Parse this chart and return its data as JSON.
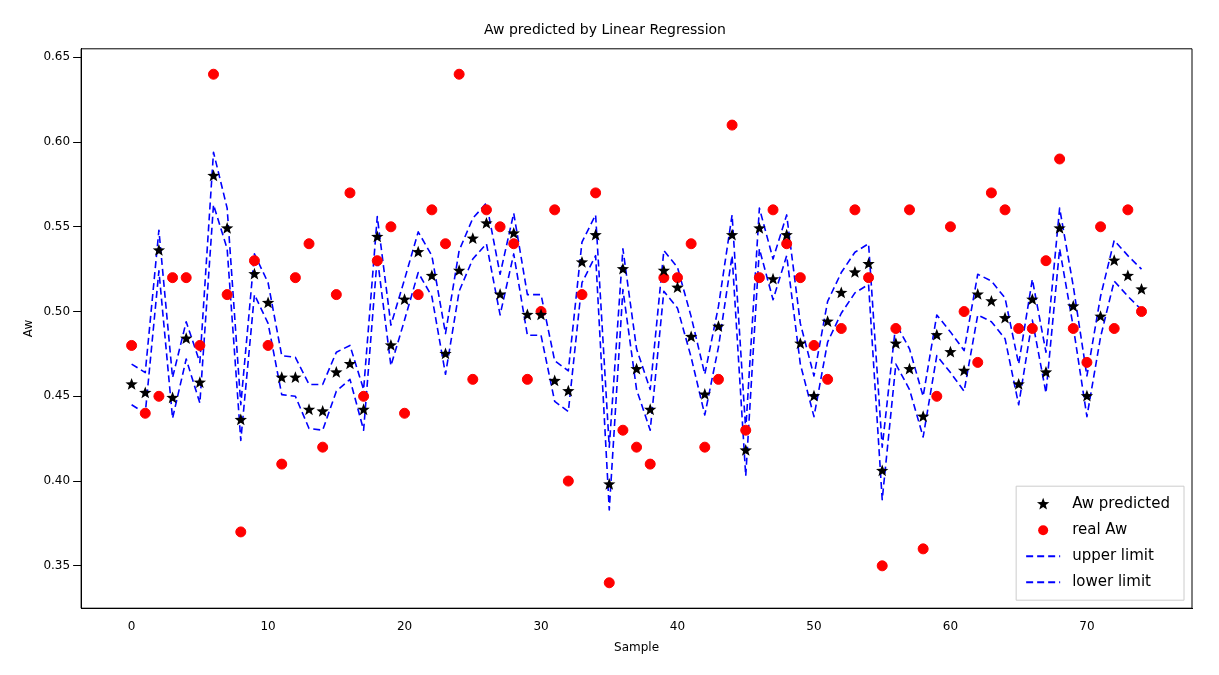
{
  "chart_data": {
    "type": "scatter",
    "title": "Aw predicted by Linear Regression",
    "xlabel": "Sample",
    "ylabel": "Aw",
    "x": [
      0,
      1,
      2,
      3,
      4,
      5,
      6,
      7,
      8,
      9,
      10,
      11,
      12,
      13,
      14,
      15,
      16,
      17,
      18,
      19,
      20,
      21,
      22,
      23,
      24,
      25,
      26,
      27,
      28,
      29,
      30,
      31,
      32,
      33,
      34,
      35,
      36,
      37,
      38,
      39,
      40,
      41,
      42,
      43,
      44,
      45,
      46,
      47,
      48,
      49,
      50,
      51,
      52,
      53,
      54,
      55,
      56,
      57,
      58,
      59,
      60,
      61,
      62,
      63,
      64,
      65,
      66,
      67,
      68,
      69,
      70,
      71,
      72,
      73,
      74
    ],
    "xlim": [
      -3.7,
      77.7
    ],
    "xticks": [
      0,
      10,
      20,
      30,
      40,
      50,
      60,
      70
    ],
    "ylim": [
      0.325,
      0.655
    ],
    "yticks": [
      {
        "value": 0.35,
        "label": "0.35"
      },
      {
        "value": 0.4,
        "label": "0.40"
      },
      {
        "value": 0.45,
        "label": "0.45"
      },
      {
        "value": 0.5,
        "label": "0.50"
      },
      {
        "value": 0.55,
        "label": "0.55"
      },
      {
        "value": 0.6,
        "label": "0.60"
      },
      {
        "value": 0.65,
        "label": "0.65"
      }
    ],
    "legend": "bottom right",
    "grid": false,
    "series": [
      {
        "name": "Aw predicted",
        "type": "scatter",
        "marker": "star",
        "color": "#000000",
        "values": [
          0.457,
          0.452,
          0.536,
          0.449,
          0.484,
          0.458,
          0.58,
          0.549,
          0.436,
          0.522,
          0.505,
          0.461,
          0.461,
          0.442,
          0.441,
          0.464,
          0.469,
          0.442,
          0.544,
          0.48,
          0.507,
          0.535,
          0.521,
          0.475,
          0.524,
          0.543,
          0.552,
          0.51,
          0.546,
          0.498,
          0.498,
          0.459,
          0.453,
          0.529,
          0.545,
          0.398,
          0.525,
          0.466,
          0.442,
          0.524,
          0.514,
          0.485,
          0.451,
          0.491,
          0.545,
          0.418,
          0.549,
          0.519,
          0.545,
          0.481,
          0.45,
          0.494,
          0.511,
          0.523,
          0.528,
          0.406,
          0.481,
          0.466,
          0.438,
          0.486,
          0.476,
          0.465,
          0.51,
          0.506,
          0.496,
          0.457,
          0.507,
          0.464,
          0.549,
          0.503,
          0.45,
          0.497,
          0.53,
          0.521,
          0.513
        ]
      },
      {
        "name": "real Aw",
        "type": "scatter",
        "marker": "circle",
        "color": "#ff0000",
        "values": [
          0.48,
          0.44,
          0.45,
          0.52,
          0.52,
          0.48,
          0.64,
          0.51,
          0.37,
          0.53,
          0.48,
          0.41,
          0.52,
          0.54,
          0.42,
          0.51,
          0.57,
          0.45,
          0.53,
          0.55,
          0.44,
          0.51,
          0.56,
          0.54,
          0.64,
          0.46,
          0.56,
          0.55,
          0.54,
          0.46,
          0.5,
          0.56,
          0.4,
          0.51,
          0.57,
          0.34,
          0.43,
          0.42,
          0.41,
          0.52,
          0.52,
          0.54,
          0.42,
          0.46,
          0.61,
          0.43,
          0.52,
          0.56,
          0.54,
          0.52,
          0.48,
          0.46,
          0.49,
          0.56,
          0.52,
          0.35,
          0.49,
          0.56,
          0.36,
          0.45,
          0.55,
          0.5,
          0.47,
          0.57,
          0.56,
          0.49,
          0.49,
          0.53,
          0.59,
          0.49,
          0.47,
          0.55,
          0.49,
          0.56,
          0.5
        ]
      },
      {
        "name": "upper limit",
        "type": "line",
        "marker": "none",
        "line_style": "dashed",
        "color": "#0000ff",
        "values": [
          0.469,
          0.464,
          0.548,
          0.461,
          0.494,
          0.47,
          0.594,
          0.561,
          0.445,
          0.534,
          0.517,
          0.474,
          0.473,
          0.457,
          0.457,
          0.476,
          0.48,
          0.454,
          0.556,
          0.492,
          0.519,
          0.547,
          0.533,
          0.487,
          0.536,
          0.555,
          0.564,
          0.522,
          0.558,
          0.51,
          0.51,
          0.471,
          0.465,
          0.541,
          0.557,
          0.42,
          0.537,
          0.478,
          0.454,
          0.536,
          0.526,
          0.497,
          0.463,
          0.503,
          0.557,
          0.43,
          0.561,
          0.531,
          0.557,
          0.493,
          0.462,
          0.506,
          0.523,
          0.535,
          0.54,
          0.42,
          0.493,
          0.478,
          0.45,
          0.498,
          0.488,
          0.477,
          0.522,
          0.518,
          0.508,
          0.469,
          0.519,
          0.476,
          0.561,
          0.515,
          0.462,
          0.509,
          0.542,
          0.533,
          0.525
        ]
      },
      {
        "name": "lower limit",
        "type": "line",
        "marker": "none",
        "line_style": "dashed",
        "color": "#0000ff",
        "values": [
          0.445,
          0.44,
          0.524,
          0.437,
          0.472,
          0.446,
          0.563,
          0.537,
          0.424,
          0.51,
          0.493,
          0.451,
          0.45,
          0.431,
          0.43,
          0.453,
          0.46,
          0.43,
          0.532,
          0.468,
          0.495,
          0.523,
          0.509,
          0.463,
          0.512,
          0.531,
          0.54,
          0.498,
          0.534,
          0.486,
          0.486,
          0.447,
          0.441,
          0.517,
          0.533,
          0.383,
          0.513,
          0.454,
          0.43,
          0.512,
          0.502,
          0.473,
          0.439,
          0.479,
          0.533,
          0.403,
          0.537,
          0.507,
          0.533,
          0.469,
          0.438,
          0.482,
          0.499,
          0.511,
          0.516,
          0.389,
          0.469,
          0.454,
          0.426,
          0.474,
          0.464,
          0.453,
          0.498,
          0.494,
          0.484,
          0.445,
          0.495,
          0.452,
          0.537,
          0.491,
          0.438,
          0.485,
          0.518,
          0.509,
          0.501
        ]
      }
    ]
  }
}
